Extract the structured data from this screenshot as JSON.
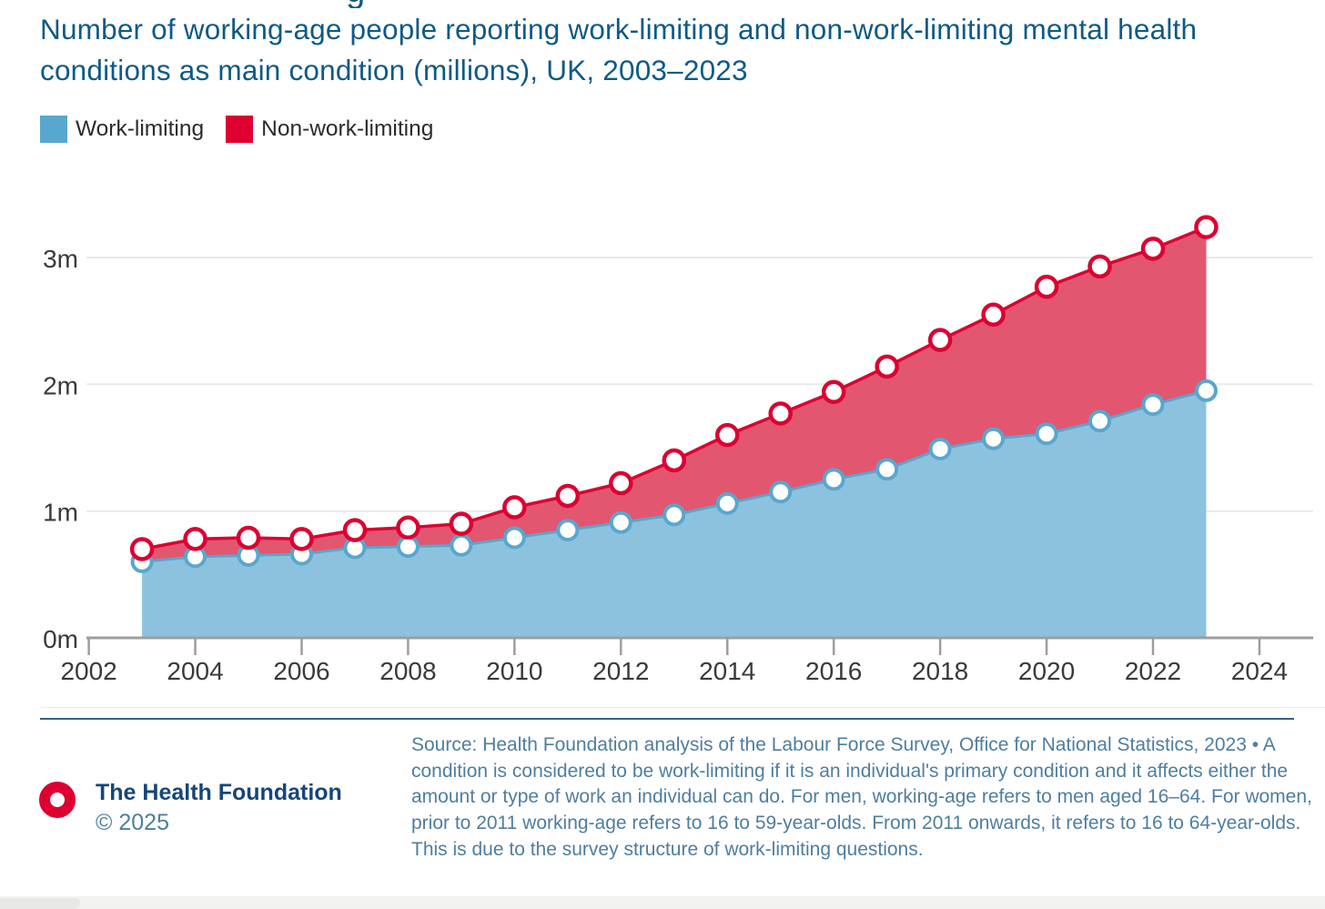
{
  "page": {
    "cropped_heading_fragment": "g"
  },
  "chart_data": {
    "type": "area",
    "stacked": true,
    "title": "Number of working-age people reporting work-limiting and non-work-limiting mental health conditions as main condition (millions), UK, 2003–2023",
    "x": [
      2003,
      2004,
      2005,
      2006,
      2007,
      2008,
      2009,
      2010,
      2011,
      2012,
      2013,
      2014,
      2015,
      2016,
      2017,
      2018,
      2019,
      2020,
      2021,
      2022,
      2023
    ],
    "series": [
      {
        "name": "Work-limiting",
        "values": [
          0.6,
          0.64,
          0.65,
          0.66,
          0.71,
          0.72,
          0.73,
          0.79,
          0.85,
          0.91,
          0.97,
          1.06,
          1.15,
          1.25,
          1.33,
          1.49,
          1.57,
          1.61,
          1.71,
          1.84,
          1.95
        ],
        "fill": "#8DC2DE",
        "line_color": "#58A7CE"
      },
      {
        "name": "Non-work-limiting",
        "values": [
          0.1,
          0.14,
          0.14,
          0.12,
          0.14,
          0.15,
          0.17,
          0.24,
          0.27,
          0.31,
          0.43,
          0.54,
          0.62,
          0.69,
          0.81,
          0.86,
          0.98,
          1.16,
          1.22,
          1.23,
          1.29
        ],
        "stack_totals": [
          0.7,
          0.78,
          0.79,
          0.78,
          0.85,
          0.87,
          0.9,
          1.03,
          1.12,
          1.22,
          1.4,
          1.6,
          1.77,
          1.94,
          2.14,
          2.35,
          2.55,
          2.77,
          2.93,
          3.07,
          3.24
        ],
        "fill": "#E25670",
        "line_color": "#DD0031"
      }
    ],
    "marker_style": "white circle with colored ring",
    "xlabel": "",
    "ylabel": "",
    "xticks": [
      2002,
      2004,
      2006,
      2008,
      2010,
      2012,
      2014,
      2016,
      2018,
      2020,
      2022,
      2024
    ],
    "yticks": [
      {
        "label": "0m",
        "value": 0
      },
      {
        "label": "1m",
        "value": 1
      },
      {
        "label": "2m",
        "value": 2
      },
      {
        "label": "3m",
        "value": 3
      }
    ],
    "xlim": [
      2002,
      2024.6
    ],
    "ylim": [
      0,
      3.5
    ],
    "gridlines": "horizontal",
    "legend_position": "top-left",
    "axis_color": "#9E9E9E",
    "grid_color": "#EAEAEA",
    "tick_label_color": "#3A3A3A"
  },
  "footer": {
    "brand": "The Health Foundation",
    "copyright": "© 2025",
    "source": "Source: Health Foundation analysis of the Labour Force Survey, Office for National Statistics, 2023 • A condition is considered to be work-limiting if it is an individual's primary condition and it affects either the amount or type of work an individual can do. For men, working-age refers to men aged 16–64. For women, prior to 2011 working-age refers to 16 to 59-year-olds. From 2011 onwards, it refers to 16 to 64-year-olds. This is due to the survey structure of work-limiting questions.",
    "brand_red": "#DD0031"
  }
}
